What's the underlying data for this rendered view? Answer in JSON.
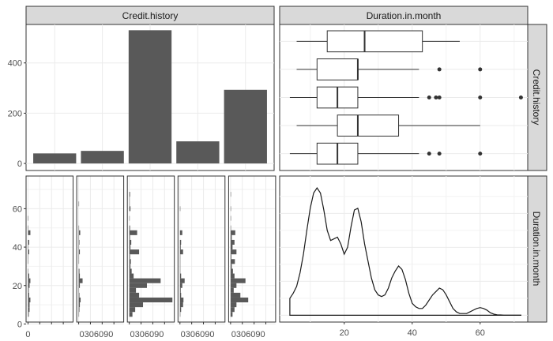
{
  "strips": {
    "col1": "Credit.history",
    "col2": "Duration.in.month",
    "row1": "Credit.history",
    "row2": "Duration.in.month"
  },
  "chart_data": [
    {
      "panel": "top-left",
      "type": "bar",
      "categories": [
        "",
        "",
        "",
        "",
        ""
      ],
      "values": [
        40,
        50,
        530,
        88,
        293
      ],
      "ylim": [
        -28,
        553
      ],
      "yticks": [
        0,
        200,
        400
      ],
      "grid": true
    },
    {
      "panel": "top-right",
      "type": "box",
      "xlim": [
        1,
        74
      ],
      "grid": true,
      "boxes": [
        {
          "min": 4,
          "q1": 12,
          "median": 18,
          "q3": 24,
          "max": 42,
          "outliers": [
            45,
            48,
            60
          ]
        },
        {
          "min": 6,
          "q1": 18,
          "median": 24,
          "q3": 36,
          "max": 60,
          "outliers": []
        },
        {
          "min": 4,
          "q1": 12,
          "median": 18,
          "q3": 24,
          "max": 42,
          "outliers": [
            45,
            47,
            48,
            60,
            72
          ]
        },
        {
          "min": 6,
          "q1": 12,
          "median": 24,
          "q3": 24,
          "max": 42,
          "outliers": [
            48,
            60
          ]
        },
        {
          "min": 6,
          "q1": 15,
          "median": 26,
          "q3": 43,
          "max": 54,
          "outliers": []
        }
      ]
    },
    {
      "panel": "bottom-left",
      "type": "bar",
      "orientation": "horizontal",
      "xlim": [
        -5,
        115
      ],
      "xtick_labels": [
        "0",
        "30",
        "60",
        "90"
      ],
      "ylim": [
        1,
        77
      ],
      "yticks": [
        0,
        20,
        40,
        60
      ],
      "grid": true,
      "bin_width": 2.5,
      "bin_starts": [
        3.75,
        6.25,
        8.75,
        11.25,
        13.75,
        16.25,
        18.75,
        21.25,
        23.75,
        26.25,
        28.75,
        31.25,
        33.75,
        36.25,
        38.75,
        41.25,
        43.75,
        46.25,
        48.75,
        51.25,
        53.75,
        56.25,
        58.75,
        61.25,
        63.75,
        66.25
      ],
      "series": [
        {
          "name": "",
          "values": [
            2,
            4,
            4,
            6,
            3,
            2,
            4,
            6,
            3,
            1,
            0,
            1,
            1,
            3,
            1,
            3,
            0,
            6,
            1,
            0,
            1,
            0,
            0,
            0,
            0,
            0
          ]
        },
        {
          "name": "",
          "values": [
            1,
            2,
            3,
            5,
            2,
            1,
            3,
            10,
            3,
            2,
            0,
            1,
            1,
            3,
            1,
            2,
            1,
            4,
            1,
            0,
            0,
            0,
            0,
            1,
            0,
            0
          ]
        },
        {
          "name": "",
          "values": [
            8,
            15,
            35,
            110,
            25,
            17,
            45,
            80,
            11,
            6,
            3,
            4,
            2,
            25,
            3,
            5,
            2,
            20,
            2,
            0,
            1,
            0,
            3,
            1,
            1,
            2
          ]
        },
        {
          "name": "",
          "values": [
            1,
            3,
            8,
            9,
            3,
            2,
            6,
            12,
            3,
            1,
            1,
            1,
            1,
            8,
            2,
            3,
            0,
            6,
            0,
            0,
            0,
            0,
            1,
            0,
            0,
            0
          ]
        },
        {
          "name": "",
          "values": [
            5,
            10,
            15,
            45,
            25,
            8,
            15,
            38,
            10,
            6,
            3,
            11,
            2,
            15,
            5,
            10,
            3,
            12,
            1,
            0,
            1,
            0,
            1,
            0,
            0,
            1
          ]
        }
      ]
    },
    {
      "panel": "bottom-right",
      "type": "line",
      "xlim": [
        1,
        74
      ],
      "xticks": [
        20,
        40,
        60
      ],
      "grid": true,
      "x": [
        4,
        5,
        6,
        7,
        8,
        9,
        10,
        11,
        12,
        13,
        14,
        15,
        16,
        17,
        18,
        19,
        20,
        21,
        22,
        23,
        24,
        25,
        26,
        27,
        28,
        29,
        30,
        31,
        32,
        33,
        34,
        35,
        36,
        37,
        38,
        39,
        40,
        41,
        42,
        43,
        44,
        45,
        46,
        47,
        48,
        49,
        50,
        51,
        52,
        53,
        54,
        55,
        56,
        57,
        58,
        59,
        60,
        61,
        62,
        63,
        64,
        65,
        66,
        67,
        68,
        69,
        70,
        71,
        72
      ],
      "y": [
        0.1,
        0.13,
        0.17,
        0.25,
        0.36,
        0.5,
        0.63,
        0.72,
        0.75,
        0.72,
        0.62,
        0.5,
        0.44,
        0.45,
        0.46,
        0.42,
        0.36,
        0.4,
        0.52,
        0.62,
        0.63,
        0.55,
        0.42,
        0.32,
        0.22,
        0.15,
        0.12,
        0.11,
        0.12,
        0.16,
        0.22,
        0.26,
        0.29,
        0.27,
        0.21,
        0.13,
        0.07,
        0.05,
        0.04,
        0.04,
        0.06,
        0.09,
        0.12,
        0.14,
        0.16,
        0.15,
        0.12,
        0.08,
        0.04,
        0.02,
        0.01,
        0.01,
        0.01,
        0.02,
        0.03,
        0.04,
        0.045,
        0.04,
        0.03,
        0.015,
        0.007,
        0.003,
        0.002,
        0.001,
        0.001,
        0.001,
        0.001,
        0.001,
        0.001
      ],
      "ylim": [
        -0.04,
        0.82
      ]
    }
  ]
}
